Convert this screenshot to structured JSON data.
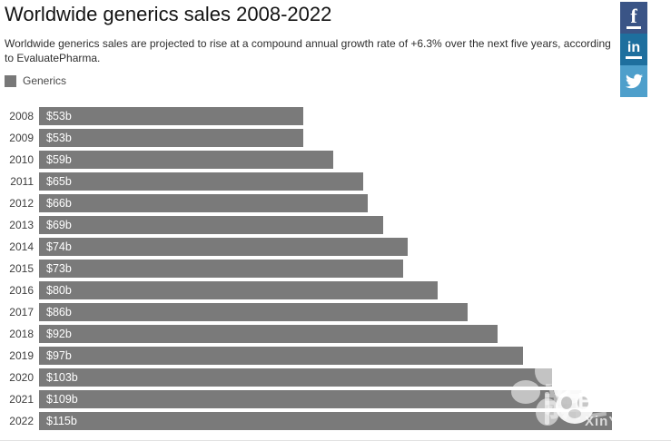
{
  "page": {
    "title": "Worldwide generics sales 2008-2022",
    "subtitle": "Worldwide generics sales are projected to rise at a compound annual growth rate of +6.3% over the next five years, according to EvaluatePharma."
  },
  "legend": {
    "items": [
      {
        "label": "Generics",
        "color": "#787878"
      }
    ]
  },
  "share_buttons": {
    "facebook": {
      "label": "f",
      "color": "#3a5486",
      "icon": "facebook-f"
    },
    "linkedin": {
      "label": "in",
      "color": "#1e6f9e",
      "icon": "linkedin-in"
    },
    "twitter": {
      "color": "#4e9fcb",
      "icon": "twitter-bird"
    }
  },
  "chart_data": {
    "type": "bar",
    "orientation": "horizontal",
    "title": "Worldwide generics sales 2008-2022",
    "series_name": "Generics",
    "unit": "USD billions",
    "categories": [
      "2008",
      "2009",
      "2010",
      "2011",
      "2012",
      "2013",
      "2014",
      "2015",
      "2016",
      "2017",
      "2018",
      "2019",
      "2020",
      "2021",
      "2022"
    ],
    "values": [
      53,
      53,
      59,
      65,
      66,
      69,
      74,
      73,
      80,
      86,
      92,
      97,
      103,
      109,
      115
    ],
    "value_labels": [
      "$53b",
      "$53b",
      "$59b",
      "$65b",
      "$66b",
      "$69b",
      "$74b",
      "$73b",
      "$80b",
      "$86b",
      "$92b",
      "$97b",
      "$103b",
      "$109b",
      "$115b"
    ],
    "bar_color": "#7a7a7a",
    "value_label_color": "#ffffff",
    "axis_visible": false,
    "grid": false,
    "legend_position": "top-left"
  },
  "watermark": {
    "ghost_text": "新药汇",
    "brand_text": "E药经理人",
    "url_text": "XinYaoHui.com"
  }
}
